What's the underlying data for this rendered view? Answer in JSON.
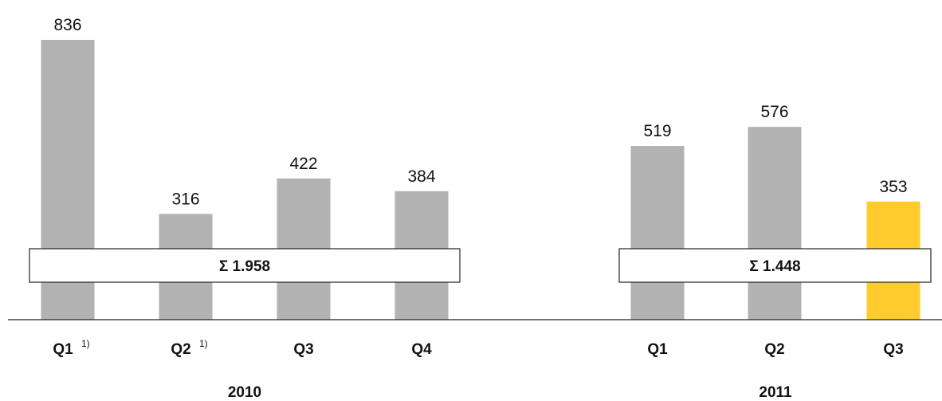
{
  "chart_data": {
    "type": "bar",
    "groups": [
      {
        "label": "2010",
        "sum_label": "Σ 1.958",
        "bars": [
          {
            "category": "Q1",
            "footnote": "1)",
            "value": 836,
            "color": "#b2b2b2"
          },
          {
            "category": "Q2",
            "footnote": "1)",
            "value": 316,
            "color": "#b2b2b2"
          },
          {
            "category": "Q3",
            "footnote": "",
            "value": 422,
            "color": "#b2b2b2"
          },
          {
            "category": "Q4",
            "footnote": "",
            "value": 384,
            "color": "#b2b2b2"
          }
        ]
      },
      {
        "label": "2011",
        "sum_label": "Σ 1.448",
        "bars": [
          {
            "category": "Q1",
            "footnote": "",
            "value": 519,
            "color": "#b2b2b2"
          },
          {
            "category": "Q2",
            "footnote": "",
            "value": 576,
            "color": "#b2b2b2"
          },
          {
            "category": "Q3",
            "footnote": "",
            "value": 353,
            "color": "#ffcb2f"
          }
        ]
      }
    ],
    "title": "",
    "xlabel": "",
    "ylabel": "",
    "ylim": [
      0,
      836
    ],
    "grid": false,
    "legend": "none"
  }
}
